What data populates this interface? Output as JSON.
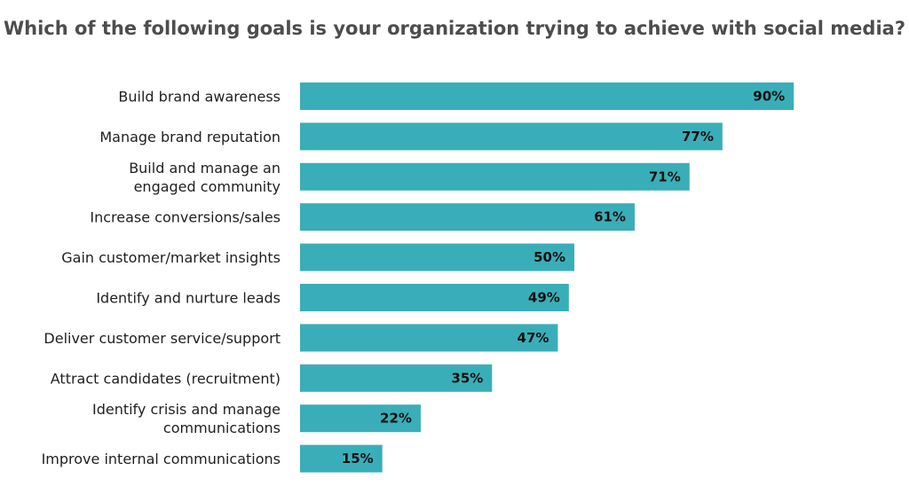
{
  "chart_data": {
    "type": "bar",
    "orientation": "horizontal",
    "title": "Which of the following goals is your organization trying to achieve with social media?",
    "categories": [
      [
        "Build brand awareness"
      ],
      [
        "Manage brand reputation"
      ],
      [
        "Build and manage an",
        "engaged community"
      ],
      [
        "Increase conversions/sales"
      ],
      [
        "Gain customer/market insights"
      ],
      [
        "Identify and nurture leads"
      ],
      [
        "Deliver customer service/support"
      ],
      [
        "Attract candidates (recruitment)"
      ],
      [
        "Identify crisis and manage",
        "communications"
      ],
      [
        "Improve internal communications"
      ]
    ],
    "values": [
      90,
      77,
      71,
      61,
      50,
      49,
      47,
      35,
      22,
      15
    ],
    "value_suffix": "%",
    "xlim": [
      0,
      100
    ],
    "xlabel": "",
    "ylabel": "",
    "grid": false,
    "bar_color": "#3aaeb8"
  }
}
